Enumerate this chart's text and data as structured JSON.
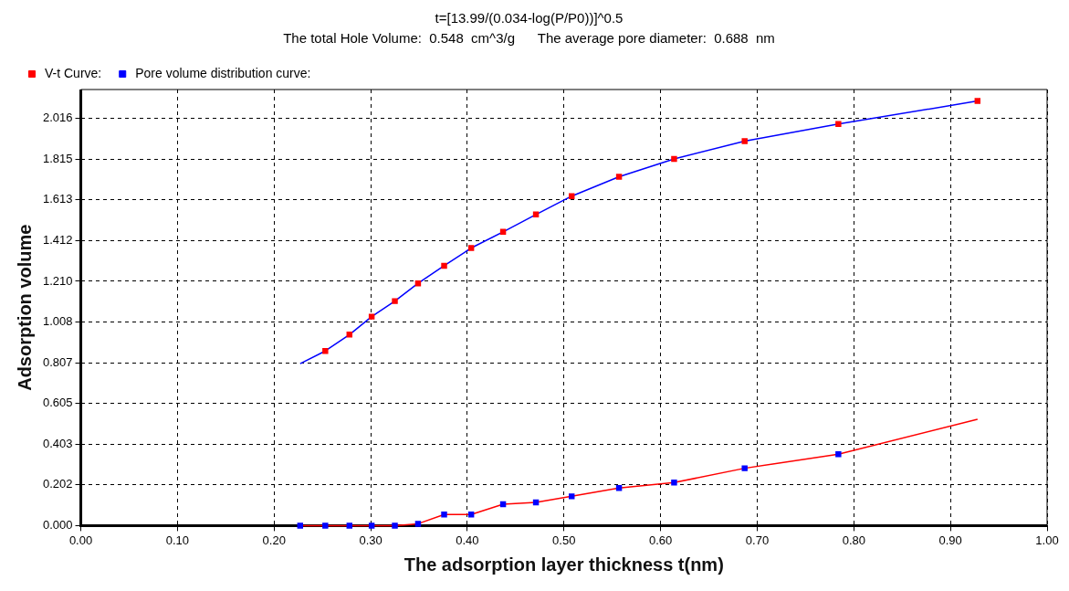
{
  "chart_data": {
    "type": "line",
    "title": "t=[13.99/(0.034-log(P/P0))]^0.5",
    "subtitle": "The total Hole Volume:  0.548  cm^3/g      The average pore diameter:  0.688  nm",
    "xlabel": "The adsorption layer thickness t(nm)",
    "ylabel": "Adsorption volume",
    "xlim": [
      0,
      1
    ],
    "xticks": [
      {
        "value": 0,
        "label": "0.00"
      },
      {
        "value": 0.1,
        "label": "0.10"
      },
      {
        "value": 0.2,
        "label": "0.20"
      },
      {
        "value": 0.3,
        "label": "0.30"
      },
      {
        "value": 0.4,
        "label": "0.40"
      },
      {
        "value": 0.5,
        "label": "0.50"
      },
      {
        "value": 0.6,
        "label": "0.60"
      },
      {
        "value": 0.7,
        "label": "0.70"
      },
      {
        "value": 0.8,
        "label": "0.80"
      },
      {
        "value": 0.9,
        "label": "0.90"
      },
      {
        "value": 1,
        "label": "1.00"
      }
    ],
    "ylim": [
      0,
      2.16
    ],
    "yticks": [
      {
        "value": 0,
        "label": "0.000"
      },
      0.202,
      0.403,
      0.605,
      0.807,
      {
        "value": 1.008,
        "label": "1.008"
      },
      {
        "value": 1.21,
        "label": "1.210"
      },
      1.412,
      1.613,
      1.815,
      2.016
    ],
    "grid": true,
    "legend": "top",
    "marker": "square",
    "series": [
      {
        "name": "V-t Curve:",
        "color": "#0000ff",
        "x": [
          0.227,
          0.253,
          0.278,
          0.301,
          0.325,
          0.349,
          0.376,
          0.404,
          0.437,
          0.471,
          0.508,
          0.557,
          0.614,
          0.687,
          0.784,
          0.928
        ],
        "values": [
          0.802,
          0.865,
          0.946,
          1.035,
          1.112,
          1.2,
          1.287,
          1.375,
          1.455,
          1.541,
          1.632,
          1.728,
          1.816,
          1.904,
          1.989,
          2.103
        ],
        "colors": [
          null,
          "#ff0000",
          "#ff0000",
          "#ff0000",
          "#ff0000",
          "#ff0000",
          "#ff0000",
          "#ff0000",
          "#ff0000",
          "#ff0000",
          "#ff0000",
          "#ff0000",
          "#ff0000",
          "#ff0000",
          "#ff0000",
          "#ff0000"
        ]
      },
      {
        "name": "Pore volume distribution curve:",
        "color": "#ff0000",
        "x": [
          0.227,
          0.253,
          0.278,
          0.301,
          0.325,
          0.349,
          0.376,
          0.404,
          0.437,
          0.471,
          0.508,
          0.557,
          0.614,
          0.687,
          0.784,
          0.928
        ],
        "values": [
          0,
          0,
          0,
          0,
          0,
          0.009,
          0.055,
          0.055,
          0.106,
          0.115,
          0.145,
          0.186,
          0.213,
          0.284,
          0.354,
          0.527
        ],
        "colors": [
          "#0000ff",
          "#0000ff",
          "#0000ff",
          "#0000ff",
          "#0000ff",
          "#0000ff",
          "#0000ff",
          "#0000ff",
          "#0000ff",
          "#0000ff",
          "#0000ff",
          "#0000ff",
          "#0000ff",
          "#0000ff",
          "#0000ff",
          null
        ]
      }
    ]
  }
}
